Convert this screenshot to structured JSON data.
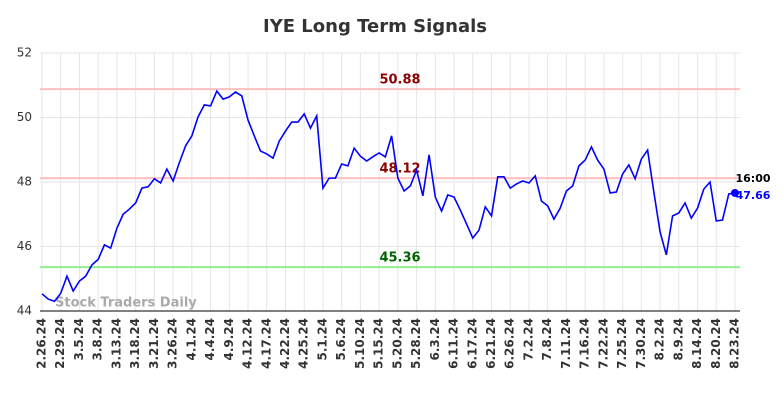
{
  "chart_data": {
    "type": "line",
    "title": "IYE Long Term Signals",
    "categories": [
      "2.26.24",
      null,
      null,
      "2.29.24",
      null,
      null,
      "3.5.24",
      null,
      null,
      "3.8.24",
      null,
      null,
      "3.13.24",
      null,
      null,
      "3.18.24",
      null,
      null,
      "3.21.24",
      null,
      null,
      "3.26.24",
      null,
      null,
      "4.1.24",
      null,
      null,
      "4.4.24",
      null,
      null,
      "4.9.24",
      null,
      null,
      "4.12.24",
      null,
      null,
      "4.17.24",
      null,
      null,
      "4.22.24",
      null,
      null,
      "4.25.24",
      null,
      null,
      "5.1.24",
      null,
      null,
      "5.6.24",
      null,
      null,
      "5.10.24",
      null,
      null,
      "5.15.24",
      null,
      null,
      "5.20.24",
      null,
      null,
      "5.28.24",
      null,
      null,
      "6.3.24",
      null,
      null,
      "6.11.24",
      null,
      null,
      "6.17.24",
      null,
      null,
      "6.21.24",
      null,
      null,
      "6.26.24",
      null,
      null,
      "7.2.24",
      null,
      null,
      "7.8.24",
      null,
      null,
      "7.11.24",
      null,
      null,
      "7.16.24",
      null,
      null,
      "7.22.24",
      null,
      null,
      "7.25.24",
      null,
      null,
      "7.30.24",
      null,
      null,
      "8.2.24",
      null,
      null,
      "8.9.24",
      null,
      null,
      "8.14.24",
      null,
      null,
      "8.20.24",
      null,
      null,
      "8.23.24"
    ],
    "series": [
      {
        "name": "IYE",
        "color": "#0000ff",
        "values": [
          44.53,
          44.37,
          44.3,
          44.55,
          45.08,
          44.62,
          44.93,
          45.08,
          45.43,
          45.6,
          46.05,
          45.95,
          46.57,
          47.0,
          47.16,
          47.35,
          47.81,
          47.85,
          48.1,
          47.97,
          48.4,
          48.03,
          48.6,
          49.12,
          49.43,
          50.02,
          50.39,
          50.36,
          50.82,
          50.57,
          50.64,
          50.79,
          50.67,
          49.92,
          49.43,
          48.96,
          48.87,
          48.74,
          49.27,
          49.58,
          49.86,
          49.86,
          50.11,
          49.67,
          50.05,
          47.81,
          48.12,
          48.12,
          48.56,
          48.5,
          49.05,
          48.8,
          48.65,
          48.78,
          48.9,
          48.78,
          49.43,
          48.12,
          47.72,
          47.88,
          48.37,
          47.57,
          48.84,
          47.53,
          47.1,
          47.6,
          47.53,
          47.13,
          46.7,
          46.26,
          46.51,
          47.23,
          46.95,
          48.16,
          48.16,
          47.81,
          47.94,
          48.03,
          47.97,
          48.19,
          47.41,
          47.26,
          46.85,
          47.19,
          47.72,
          47.88,
          48.5,
          48.68,
          49.09,
          48.68,
          48.4,
          47.66,
          47.69,
          48.25,
          48.53,
          48.1,
          48.71,
          48.99,
          47.69,
          46.45,
          45.74,
          46.95,
          47.04,
          47.35,
          46.88,
          47.19,
          47.78,
          48.0,
          46.79,
          46.82,
          47.63,
          47.66
        ]
      }
    ],
    "last_label": "16:00",
    "levels": [
      {
        "value": 50.88,
        "color": "#ffc0c0",
        "text_color": "#8b0000"
      },
      {
        "value": 48.12,
        "color": "#ffc0c0",
        "text_color": "#8b0000"
      },
      {
        "value": 45.36,
        "color": "#90ee90",
        "text_color": "#006400"
      }
    ],
    "watermark": "Stock Traders Daily",
    "ylim": [
      44,
      52
    ],
    "yticks": [
      44,
      46,
      48,
      50,
      52
    ],
    "grid": true
  }
}
